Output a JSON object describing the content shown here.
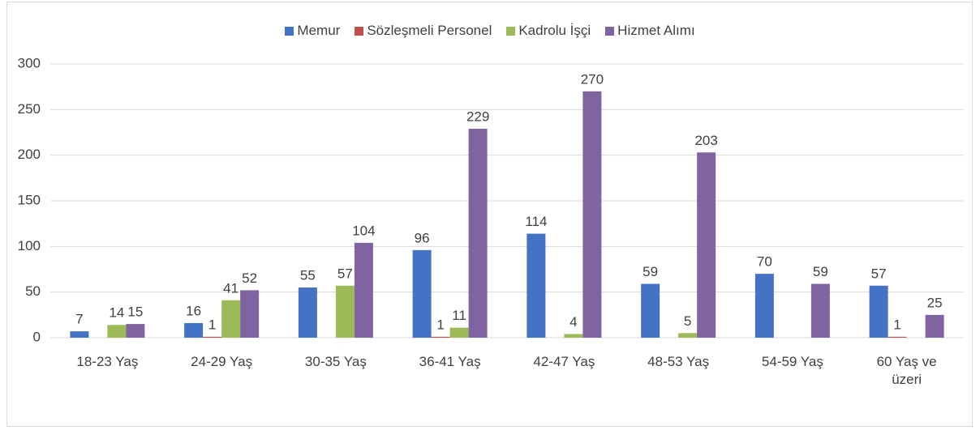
{
  "chart_data": {
    "type": "bar",
    "categories": [
      "18-23 Yaş",
      "24-29 Yaş",
      "30-35 Yaş",
      "36-41 Yaş",
      "42-47 Yaş",
      "48-53 Yaş",
      "54-59 Yaş",
      "60 Yaş ve üzeri"
    ],
    "series": [
      {
        "name": "Memur",
        "color": "#4472c4",
        "values": [
          7,
          16,
          55,
          96,
          114,
          59,
          70,
          57
        ]
      },
      {
        "name": "Sözleşmeli Personel",
        "color": "#c0504d",
        "values": [
          null,
          1,
          null,
          1,
          null,
          null,
          null,
          1
        ]
      },
      {
        "name": "Kadrolu İşçi",
        "color": "#9bbb59",
        "values": [
          14,
          41,
          57,
          11,
          4,
          5,
          null,
          null
        ]
      },
      {
        "name": "Hizmet Alımı",
        "color": "#8064a2",
        "values": [
          15,
          52,
          104,
          229,
          270,
          203,
          59,
          25
        ]
      }
    ],
    "ylim": [
      0,
      300
    ],
    "yticks": [
      0,
      50,
      100,
      150,
      200,
      250,
      300
    ],
    "grid": true,
    "legend": "top"
  }
}
